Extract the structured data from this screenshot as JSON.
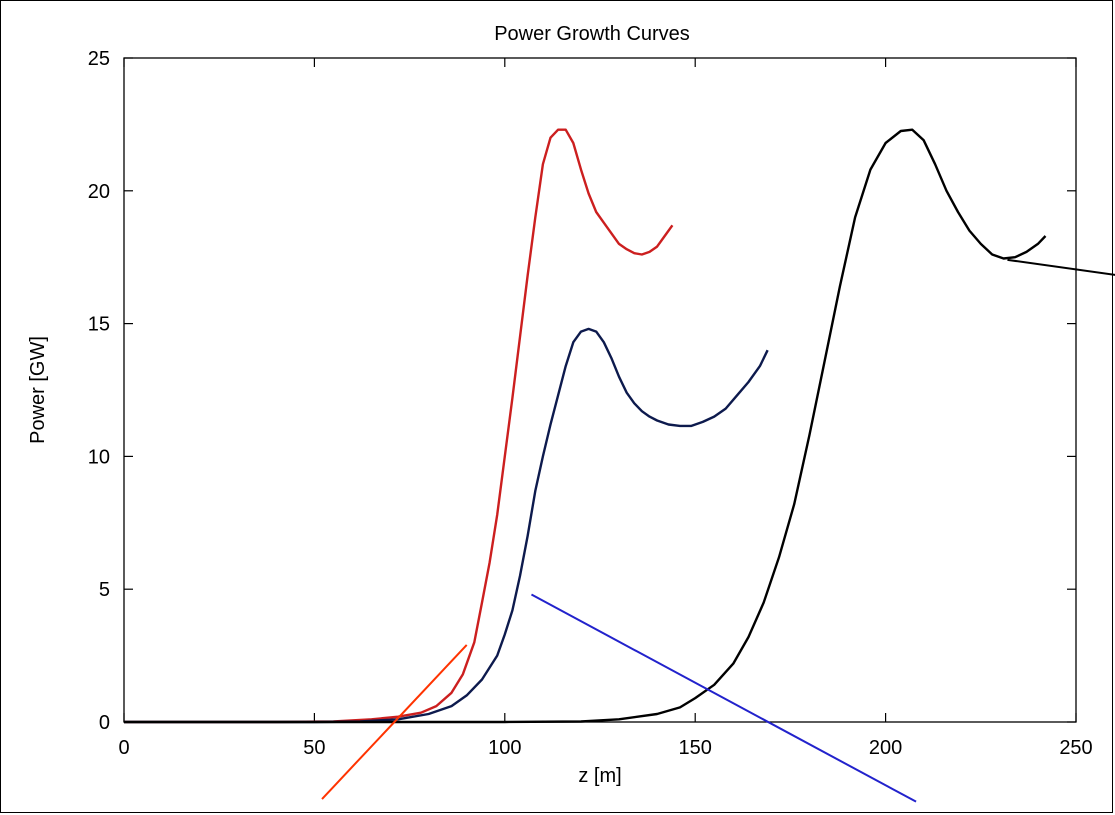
{
  "chart_data": {
    "type": "line",
    "title": "Power Growth Curves",
    "xlabel": "z [m]",
    "ylabel": "Power [GW]",
    "xlim": [
      0,
      250
    ],
    "ylim": [
      0,
      25
    ],
    "x_ticks": [
      0,
      50,
      100,
      150,
      200,
      250
    ],
    "y_ticks": [
      0,
      5,
      10,
      15,
      20,
      25
    ],
    "grid": false,
    "series": [
      {
        "color": "#cc1f1f",
        "points": [
          [
            0,
            0
          ],
          [
            40,
            0
          ],
          [
            55,
            0.02
          ],
          [
            65,
            0.1
          ],
          [
            72,
            0.2
          ],
          [
            78,
            0.35
          ],
          [
            82,
            0.6
          ],
          [
            86,
            1.1
          ],
          [
            89,
            1.8
          ],
          [
            92,
            3.0
          ],
          [
            94,
            4.5
          ],
          [
            96,
            6.0
          ],
          [
            98,
            7.8
          ],
          [
            100,
            10.0
          ],
          [
            102,
            12.2
          ],
          [
            104,
            14.5
          ],
          [
            106,
            16.8
          ],
          [
            108,
            19.0
          ],
          [
            110,
            21.0
          ],
          [
            112,
            22.0
          ],
          [
            114,
            22.3
          ],
          [
            116,
            22.3
          ],
          [
            118,
            21.8
          ],
          [
            120,
            20.8
          ],
          [
            122,
            19.9
          ],
          [
            124,
            19.2
          ],
          [
            126,
            18.8
          ],
          [
            128,
            18.4
          ],
          [
            130,
            18.0
          ],
          [
            132,
            17.8
          ],
          [
            134,
            17.65
          ],
          [
            136,
            17.6
          ],
          [
            138,
            17.7
          ],
          [
            140,
            17.9
          ],
          [
            142,
            18.3
          ],
          [
            144,
            18.7
          ]
        ]
      },
      {
        "color": "#0d1a4d",
        "points": [
          [
            0,
            0
          ],
          [
            50,
            0
          ],
          [
            62,
            0.02
          ],
          [
            72,
            0.1
          ],
          [
            80,
            0.3
          ],
          [
            86,
            0.6
          ],
          [
            90,
            1.0
          ],
          [
            94,
            1.6
          ],
          [
            98,
            2.5
          ],
          [
            100,
            3.3
          ],
          [
            102,
            4.2
          ],
          [
            104,
            5.5
          ],
          [
            106,
            7.0
          ],
          [
            108,
            8.7
          ],
          [
            110,
            10.0
          ],
          [
            112,
            11.2
          ],
          [
            114,
            12.3
          ],
          [
            116,
            13.4
          ],
          [
            118,
            14.3
          ],
          [
            120,
            14.7
          ],
          [
            122,
            14.8
          ],
          [
            124,
            14.7
          ],
          [
            126,
            14.3
          ],
          [
            128,
            13.7
          ],
          [
            130,
            13.0
          ],
          [
            132,
            12.4
          ],
          [
            134,
            12.0
          ],
          [
            136,
            11.7
          ],
          [
            138,
            11.5
          ],
          [
            140,
            11.35
          ],
          [
            143,
            11.2
          ],
          [
            146,
            11.15
          ],
          [
            149,
            11.15
          ],
          [
            152,
            11.3
          ],
          [
            155,
            11.5
          ],
          [
            158,
            11.8
          ],
          [
            161,
            12.3
          ],
          [
            164,
            12.8
          ],
          [
            167,
            13.4
          ],
          [
            169,
            14.0
          ]
        ]
      },
      {
        "color": "#000000",
        "points": [
          [
            0,
            0
          ],
          [
            100,
            0
          ],
          [
            120,
            0.02
          ],
          [
            130,
            0.1
          ],
          [
            140,
            0.3
          ],
          [
            146,
            0.55
          ],
          [
            150,
            0.9
          ],
          [
            155,
            1.4
          ],
          [
            160,
            2.2
          ],
          [
            164,
            3.2
          ],
          [
            168,
            4.5
          ],
          [
            172,
            6.2
          ],
          [
            176,
            8.2
          ],
          [
            180,
            10.8
          ],
          [
            184,
            13.6
          ],
          [
            188,
            16.4
          ],
          [
            192,
            19.0
          ],
          [
            196,
            20.8
          ],
          [
            200,
            21.8
          ],
          [
            204,
            22.25
          ],
          [
            207,
            22.3
          ],
          [
            210,
            21.9
          ],
          [
            213,
            21.0
          ],
          [
            216,
            20.0
          ],
          [
            219,
            19.2
          ],
          [
            222,
            18.5
          ],
          [
            225,
            18.0
          ],
          [
            228,
            17.6
          ],
          [
            231,
            17.45
          ],
          [
            234,
            17.5
          ],
          [
            237,
            17.7
          ],
          [
            240,
            18.0
          ],
          [
            242,
            18.3
          ]
        ]
      }
    ],
    "annotation_lines": [
      {
        "color": "#ff3300",
        "from": [
          90,
          2.9
        ],
        "to": [
          52,
          -2.9
        ]
      },
      {
        "color": "#2222cc",
        "from": [
          107,
          4.8
        ],
        "to": [
          208,
          -3.0
        ]
      },
      {
        "color": "#000000",
        "from": [
          232,
          17.4
        ],
        "to": [
          282,
          16.4
        ]
      }
    ]
  }
}
